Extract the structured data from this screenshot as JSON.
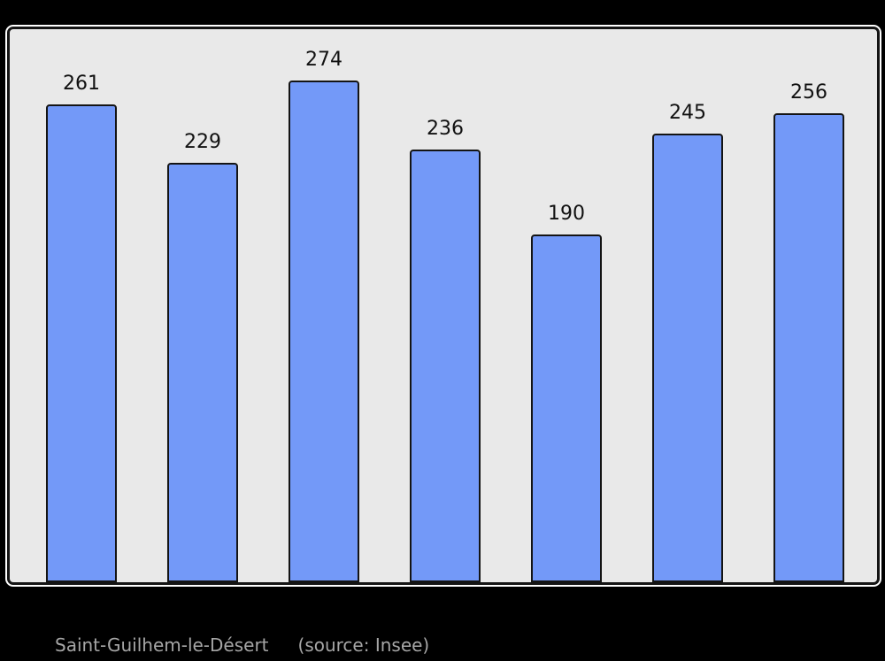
{
  "page": {
    "background": "#000000"
  },
  "chart_data": {
    "type": "bar",
    "values": [
      261,
      229,
      274,
      236,
      190,
      245,
      256
    ],
    "data_labels": [
      "261",
      "229",
      "274",
      "236",
      "190",
      "245",
      "256"
    ],
    "title": "",
    "xlabel": "",
    "ylabel": "",
    "x_tick_labels": [],
    "y_tick_labels": [],
    "ylim": [
      0,
      300
    ],
    "grid": false,
    "legend": "none",
    "bar_color": "#7399f8",
    "bar_border_color": "#141414",
    "plot_background": "#e9e9e9",
    "frame_border_color": "#141414",
    "frame_outline_color": "#ffffff"
  },
  "caption": {
    "location": "Saint-Guilhem-le-Désert",
    "source": "(source: Insee)",
    "color": "#a6a6a6"
  }
}
